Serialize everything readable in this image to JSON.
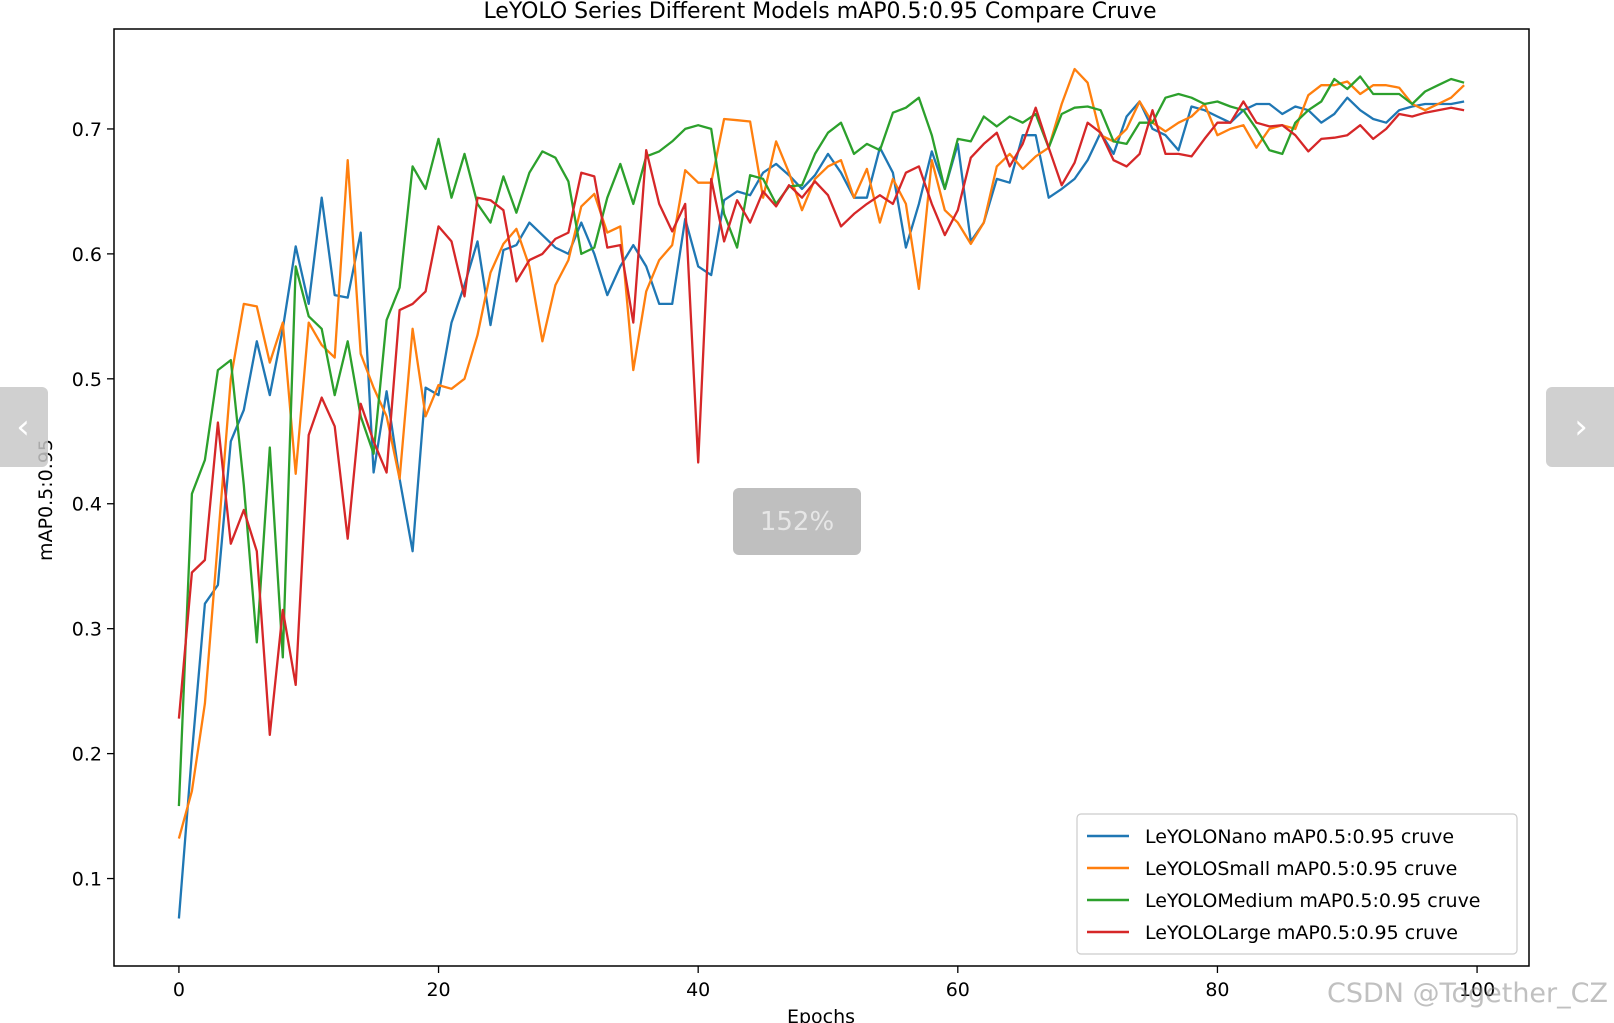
{
  "chart_data": {
    "type": "line",
    "title": "LeYOLO Series Different Models mAP0.5:0.95 Compare Cruve",
    "xlabel": "Epochs",
    "ylabel": "mAP0.5:0.95",
    "xlim": [
      -5,
      104
    ],
    "ylim": [
      0.03,
      0.78
    ],
    "xticks": [
      0,
      20,
      40,
      60,
      80,
      100
    ],
    "yticks": [
      0.1,
      0.2,
      0.3,
      0.4,
      0.5,
      0.6,
      0.7
    ],
    "xtick_labels": [
      "0",
      "20",
      "40",
      "60",
      "80",
      "100"
    ],
    "ytick_labels": [
      "0.1",
      "0.2",
      "0.3",
      "0.4",
      "0.5",
      "0.6",
      "0.7"
    ],
    "grid": false,
    "legend_position": "lower-right",
    "x": [
      0,
      1,
      2,
      3,
      4,
      5,
      6,
      7,
      8,
      9,
      10,
      11,
      12,
      13,
      14,
      15,
      16,
      17,
      18,
      19,
      20,
      21,
      22,
      23,
      24,
      25,
      26,
      27,
      28,
      29,
      30,
      31,
      32,
      33,
      34,
      35,
      36,
      37,
      38,
      39,
      40,
      41,
      42,
      43,
      44,
      45,
      46,
      47,
      48,
      49,
      50,
      51,
      52,
      53,
      54,
      55,
      56,
      57,
      58,
      59,
      60,
      61,
      62,
      63,
      64,
      65,
      66,
      67,
      68,
      69,
      70,
      71,
      72,
      73,
      74,
      75,
      76,
      77,
      78,
      79,
      80,
      81,
      82,
      83,
      84,
      85,
      86,
      87,
      88,
      89,
      90,
      91,
      92,
      93,
      94,
      95,
      96,
      97,
      98,
      99
    ],
    "series": [
      {
        "name": "LeYOLONano mAP0.5:0.95 cruve",
        "color": "#1f77b4",
        "values": [
          0.068,
          0.2,
          0.32,
          0.335,
          0.45,
          0.475,
          0.53,
          0.487,
          0.54,
          0.606,
          0.56,
          0.645,
          0.567,
          0.565,
          0.617,
          0.425,
          0.49,
          0.42,
          0.362,
          0.493,
          0.487,
          0.545,
          0.575,
          0.61,
          0.543,
          0.603,
          0.607,
          0.625,
          0.615,
          0.605,
          0.6,
          0.625,
          0.6,
          0.567,
          0.59,
          0.607,
          0.59,
          0.56,
          0.56,
          0.628,
          0.59,
          0.583,
          0.643,
          0.65,
          0.647,
          0.665,
          0.672,
          0.663,
          0.652,
          0.663,
          0.68,
          0.665,
          0.645,
          0.645,
          0.685,
          0.665,
          0.605,
          0.64,
          0.682,
          0.652,
          0.688,
          0.61,
          0.625,
          0.66,
          0.657,
          0.695,
          0.695,
          0.645,
          0.652,
          0.66,
          0.675,
          0.697,
          0.68,
          0.71,
          0.722,
          0.7,
          0.695,
          0.683,
          0.718,
          0.715,
          0.71,
          0.705,
          0.715,
          0.72,
          0.72,
          0.712,
          0.718,
          0.715,
          0.705,
          0.712,
          0.725,
          0.715,
          0.708,
          0.705,
          0.715,
          0.718,
          0.72,
          0.72,
          0.72,
          0.722
        ]
      },
      {
        "name": "LeYOLOSmall mAP0.5:0.95 cruve",
        "color": "#ff7f0e",
        "values": [
          0.132,
          0.17,
          0.24,
          0.37,
          0.5,
          0.56,
          0.558,
          0.513,
          0.545,
          0.424,
          0.545,
          0.527,
          0.517,
          0.675,
          0.52,
          0.493,
          0.47,
          0.42,
          0.54,
          0.47,
          0.495,
          0.492,
          0.5,
          0.535,
          0.585,
          0.608,
          0.62,
          0.59,
          0.53,
          0.575,
          0.595,
          0.638,
          0.648,
          0.617,
          0.622,
          0.507,
          0.57,
          0.595,
          0.607,
          0.667,
          0.657,
          0.657,
          0.708,
          0.707,
          0.706,
          0.645,
          0.69,
          0.665,
          0.635,
          0.66,
          0.67,
          0.675,
          0.645,
          0.668,
          0.625,
          0.66,
          0.64,
          0.572,
          0.675,
          0.635,
          0.625,
          0.608,
          0.625,
          0.67,
          0.68,
          0.668,
          0.678,
          0.685,
          0.72,
          0.748,
          0.737,
          0.695,
          0.69,
          0.7,
          0.722,
          0.705,
          0.698,
          0.705,
          0.71,
          0.72,
          0.695,
          0.7,
          0.703,
          0.685,
          0.7,
          0.703,
          0.7,
          0.727,
          0.735,
          0.735,
          0.738,
          0.728,
          0.735,
          0.735,
          0.733,
          0.72,
          0.715,
          0.72,
          0.725,
          0.735
        ]
      },
      {
        "name": "LeYOLOMedium mAP0.5:0.95 cruve",
        "color": "#2ca02c",
        "values": [
          0.158,
          0.408,
          0.435,
          0.507,
          0.515,
          0.415,
          0.289,
          0.445,
          0.277,
          0.59,
          0.55,
          0.54,
          0.487,
          0.53,
          0.47,
          0.44,
          0.547,
          0.573,
          0.67,
          0.652,
          0.692,
          0.645,
          0.68,
          0.64,
          0.625,
          0.662,
          0.633,
          0.665,
          0.682,
          0.677,
          0.658,
          0.6,
          0.605,
          0.645,
          0.672,
          0.64,
          0.678,
          0.682,
          0.69,
          0.7,
          0.703,
          0.7,
          0.632,
          0.605,
          0.663,
          0.66,
          0.64,
          0.654,
          0.655,
          0.68,
          0.697,
          0.705,
          0.68,
          0.688,
          0.683,
          0.713,
          0.717,
          0.725,
          0.695,
          0.652,
          0.692,
          0.69,
          0.71,
          0.702,
          0.71,
          0.705,
          0.712,
          0.685,
          0.712,
          0.717,
          0.718,
          0.715,
          0.69,
          0.688,
          0.705,
          0.705,
          0.725,
          0.728,
          0.725,
          0.72,
          0.722,
          0.718,
          0.715,
          0.7,
          0.683,
          0.68,
          0.705,
          0.715,
          0.722,
          0.74,
          0.732,
          0.742,
          0.728,
          0.728,
          0.728,
          0.72,
          0.73,
          0.735,
          0.74,
          0.737
        ]
      },
      {
        "name": "LeYOLOLarge mAP0.5:0.95 cruve",
        "color": "#d62728",
        "values": [
          0.228,
          0.345,
          0.355,
          0.465,
          0.368,
          0.395,
          0.362,
          0.215,
          0.315,
          0.255,
          0.455,
          0.485,
          0.462,
          0.372,
          0.48,
          0.45,
          0.425,
          0.555,
          0.56,
          0.57,
          0.622,
          0.61,
          0.566,
          0.645,
          0.643,
          0.635,
          0.578,
          0.595,
          0.6,
          0.612,
          0.617,
          0.665,
          0.662,
          0.605,
          0.607,
          0.545,
          0.683,
          0.64,
          0.618,
          0.64,
          0.433,
          0.66,
          0.61,
          0.643,
          0.625,
          0.65,
          0.638,
          0.655,
          0.645,
          0.658,
          0.647,
          0.622,
          0.632,
          0.64,
          0.647,
          0.64,
          0.665,
          0.67,
          0.64,
          0.615,
          0.635,
          0.677,
          0.688,
          0.697,
          0.67,
          0.688,
          0.717,
          0.685,
          0.655,
          0.673,
          0.705,
          0.697,
          0.675,
          0.67,
          0.68,
          0.715,
          0.68,
          0.68,
          0.678,
          0.692,
          0.705,
          0.705,
          0.722,
          0.705,
          0.702,
          0.703,
          0.695,
          0.682,
          0.692,
          0.693,
          0.695,
          0.703,
          0.692,
          0.7,
          0.712,
          0.71,
          0.713,
          0.715,
          0.717,
          0.715
        ]
      }
    ]
  },
  "ui": {
    "zoom_level": "152%",
    "watermark": "CSDN @Together_CZ",
    "prev_icon": "chevron-left-icon",
    "next_icon": "chevron-right-icon"
  }
}
